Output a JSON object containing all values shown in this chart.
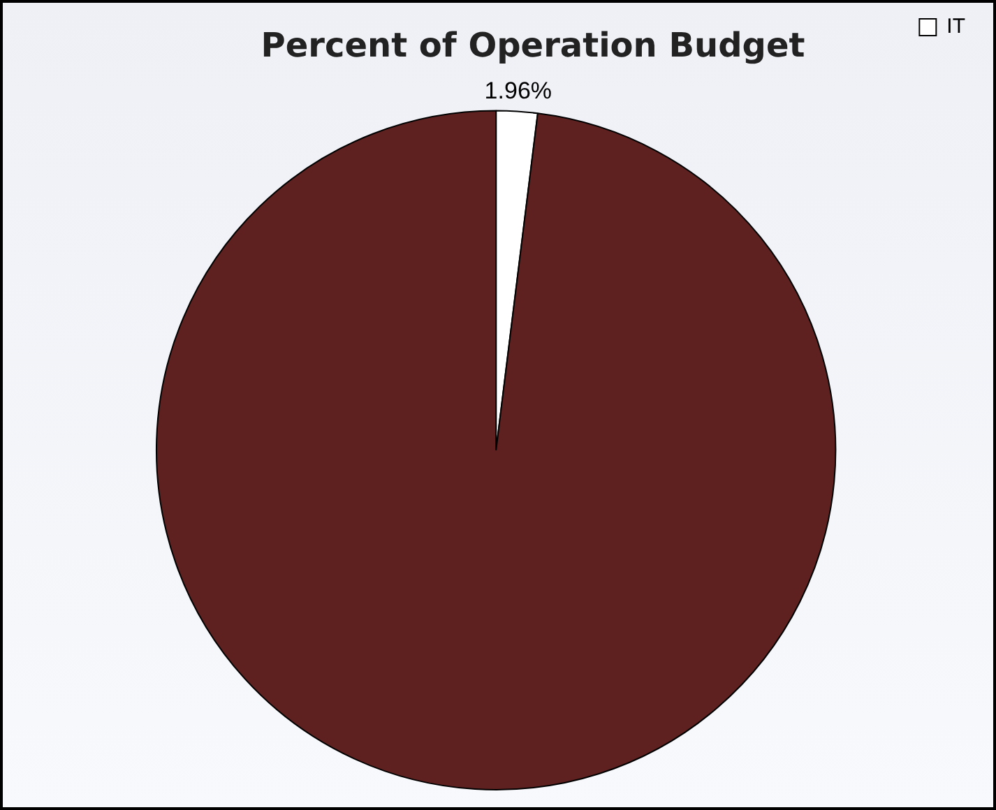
{
  "chart_data": {
    "type": "pie",
    "title": "Percent of Operation Budget",
    "categories": [
      "IT",
      null
    ],
    "values": [
      1.96,
      98.04
    ],
    "colors": [
      "#ffffff",
      "#5e2120"
    ],
    "value_labels": [
      "1.96%",
      null
    ],
    "legend": "top right"
  }
}
